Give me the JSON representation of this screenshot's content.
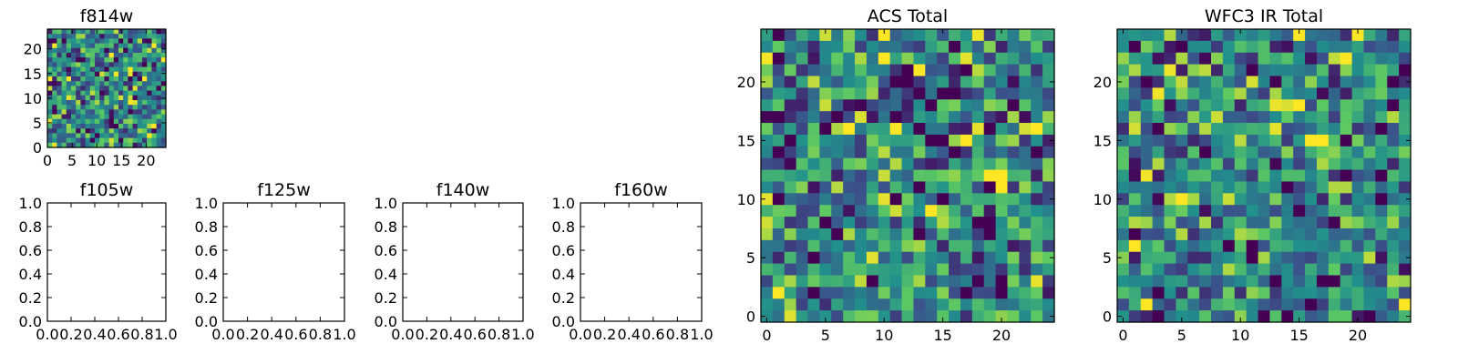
{
  "figure": {
    "description_free": true
  },
  "palette": {
    "colormap": [
      "#440154",
      "#3b528b",
      "#21918c",
      "#5ec962",
      "#fde725"
    ],
    "background": "#ffffff",
    "axes": "#000000"
  },
  "chart_data": [
    {
      "id": "f814w",
      "type": "heatmap",
      "title": "f814w",
      "xlabel": "",
      "ylabel": "",
      "grid_size": 25,
      "xlim": [
        0,
        24
      ],
      "ylim": [
        0,
        24
      ],
      "xticks": [
        "0",
        "5",
        "10",
        "15",
        "20"
      ],
      "yticks": [
        "0",
        "5",
        "10",
        "15",
        "20"
      ],
      "seed": 814,
      "colormap": "viridis"
    },
    {
      "id": "f105w",
      "type": "heatmap",
      "title": "f105w",
      "empty": true,
      "xlim": [
        0.0,
        1.0
      ],
      "ylim": [
        0.0,
        1.0
      ],
      "xticks": [
        "0.0",
        "0.2",
        "0.4",
        "0.6",
        "0.8",
        "1.0"
      ],
      "yticks": [
        "0.0",
        "0.2",
        "0.4",
        "0.6",
        "0.8",
        "1.0"
      ]
    },
    {
      "id": "f125w",
      "type": "heatmap",
      "title": "f125w",
      "empty": true,
      "xlim": [
        0.0,
        1.0
      ],
      "ylim": [
        0.0,
        1.0
      ],
      "xticks": [
        "0.0",
        "0.2",
        "0.4",
        "0.6",
        "0.8",
        "1.0"
      ],
      "yticks": [
        "0.0",
        "0.2",
        "0.4",
        "0.6",
        "0.8",
        "1.0"
      ]
    },
    {
      "id": "f140w",
      "type": "heatmap",
      "title": "f140w",
      "empty": true,
      "xlim": [
        0.0,
        1.0
      ],
      "ylim": [
        0.0,
        1.0
      ],
      "xticks": [
        "0.0",
        "0.2",
        "0.4",
        "0.6",
        "0.8",
        "1.0"
      ],
      "yticks": [
        "0.0",
        "0.2",
        "0.4",
        "0.6",
        "0.8",
        "1.0"
      ]
    },
    {
      "id": "f160w",
      "type": "heatmap",
      "title": "f160w",
      "empty": true,
      "xlim": [
        0.0,
        1.0
      ],
      "ylim": [
        0.0,
        1.0
      ],
      "xticks": [
        "0.0",
        "0.2",
        "0.4",
        "0.6",
        "0.8",
        "1.0"
      ],
      "yticks": [
        "0.0",
        "0.2",
        "0.4",
        "0.6",
        "0.8",
        "1.0"
      ]
    },
    {
      "id": "acs_total",
      "type": "heatmap",
      "title": "ACS Total",
      "grid_size": 25,
      "xlim": [
        -0.5,
        24.5
      ],
      "ylim": [
        -0.5,
        24.5
      ],
      "xticks": [
        "0",
        "5",
        "10",
        "15",
        "20"
      ],
      "yticks": [
        "0",
        "5",
        "10",
        "15",
        "20"
      ],
      "seed": 1234,
      "colormap": "viridis"
    },
    {
      "id": "wfc3_ir_total",
      "type": "heatmap",
      "title": "WFC3 IR Total",
      "grid_size": 25,
      "xlim": [
        -0.5,
        24.5
      ],
      "ylim": [
        -0.5,
        24.5
      ],
      "xticks": [
        "0",
        "5",
        "10",
        "15",
        "20"
      ],
      "yticks": [
        "0",
        "5",
        "10",
        "15",
        "20"
      ],
      "seed": 5678,
      "colormap": "viridis"
    }
  ]
}
